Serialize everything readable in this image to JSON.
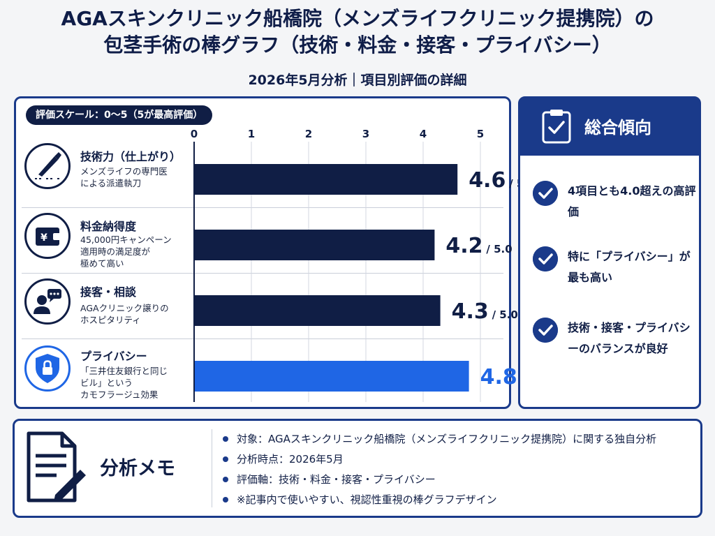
{
  "header": {
    "title_line1": "AGAスキンクリニック船橋院（メンズライフクリニック提携院）の",
    "title_line2": "包茎手術の棒グラフ（技術・料金・接客・プライバシー）",
    "subtitle": "2026年5月分析｜項目別評価の詳細"
  },
  "chart": {
    "scale_label": "評価スケール：0〜5（5が最高評価）",
    "rows": [
      {
        "name": "技術力（仕上がり）",
        "desc": "メンズライフの専門医\nによる派遣執刀",
        "icon": "scalpel-icon"
      },
      {
        "name": "料金納得度",
        "desc": "45,000円キャンペーン\n適用時の満足度が\n極めて高い",
        "icon": "wallet-yen-icon"
      },
      {
        "name": "接客・相談",
        "desc": "AGAクリニック譲りの\nホスピタリティ",
        "icon": "consultation-icon"
      },
      {
        "name": "プライバシー",
        "desc": "「三井住友銀行と同じ\nビル」という\nカモフラージュ効果",
        "icon": "shield-lock-icon"
      }
    ]
  },
  "chart_data": {
    "type": "bar",
    "orientation": "horizontal",
    "categories": [
      "技術力（仕上がり）",
      "料金納得度",
      "接客・相談",
      "プライバシー"
    ],
    "values": [
      4.6,
      4.2,
      4.3,
      4.8
    ],
    "value_labels": [
      "4.6",
      "4.2",
      "4.3",
      "4.8"
    ],
    "suffix": "/ 5.0",
    "xlim": [
      0,
      5
    ],
    "ticks": [
      0,
      1,
      2,
      3,
      4,
      5
    ],
    "grid": true,
    "colors": {
      "default": "#101e45",
      "highlight": "#1f66e5"
    },
    "highlight_index": 3
  },
  "trend": {
    "title": "総合傾向",
    "icon": "clipboard-check-icon",
    "items": [
      "4項目とも4.0超えの高評価",
      "特に「プライバシー」が最も高い",
      "技術・接客・プライバシーのバランスが良好"
    ]
  },
  "memo": {
    "title": "分析メモ",
    "icon": "document-pen-icon",
    "items": [
      "対象：AGAスキンクリニック船橋院（メンズライフクリニック提携院）に関する独自分析",
      "分析時点：2026年5月",
      "評価軸：技術・料金・接客・プライバシー",
      "※記事内で使いやすい、視認性重視の棒グラフデザイン"
    ]
  },
  "colors": {
    "navy": "#101e45",
    "blue": "#1a3a8a",
    "accent": "#1f66e5"
  }
}
